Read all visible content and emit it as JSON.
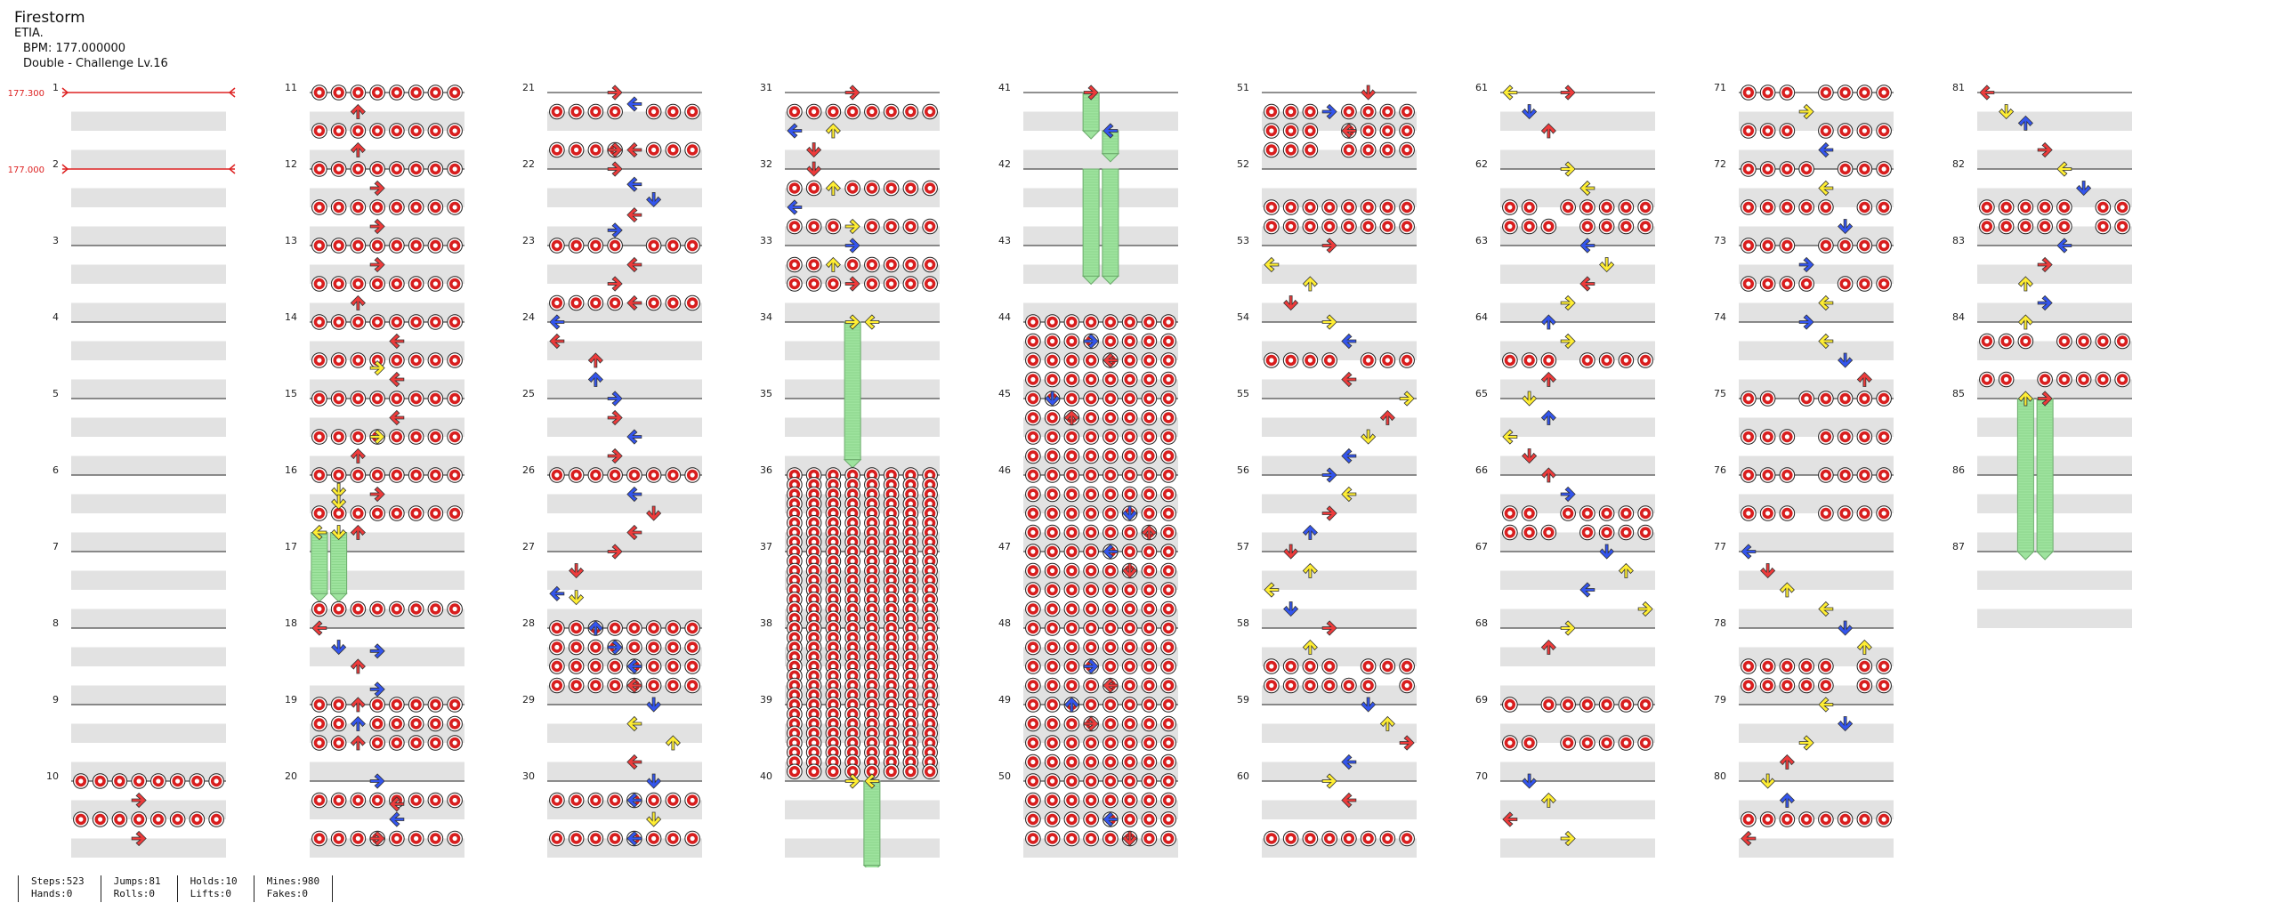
{
  "song": {
    "title": "Firestorm",
    "artist": "ETIA.",
    "bpm_label": "BPM: 177.000000",
    "difficulty": "Double - Challenge Lv.16"
  },
  "bpm_changes": [
    {
      "measure": 1,
      "label": "177.300"
    },
    {
      "measure": 2,
      "label": "177.000"
    }
  ],
  "measures": [
    1,
    2,
    3,
    4,
    5,
    6,
    7,
    8,
    9,
    10,
    11,
    12,
    13,
    14,
    15,
    16,
    17,
    18,
    19,
    20,
    21,
    22,
    23,
    24,
    25,
    26,
    27,
    28,
    29,
    30,
    31,
    32,
    33,
    34,
    35,
    36,
    37,
    38,
    39,
    40,
    41,
    42,
    43,
    44,
    45,
    46,
    47,
    48,
    49,
    50,
    51,
    52,
    53,
    54,
    55,
    56,
    57,
    58,
    59,
    60,
    61,
    62,
    63,
    64,
    65,
    66,
    67,
    68,
    69,
    70,
    71,
    72,
    73,
    74,
    75,
    76,
    77,
    78,
    79,
    80,
    81,
    82,
    83,
    84,
    85,
    86,
    87
  ],
  "colors": {
    "quarter": "#ee3b3b",
    "eighth": "#3355ee",
    "sixteenth": "#ffee33",
    "hold": "#9ee39e",
    "mine": "#d81e1e",
    "band": "#e2e2e2"
  },
  "stats": {
    "steps": "Steps:523",
    "hands": "Hands:0",
    "jumps": "Jumps:81",
    "rolls": "Rolls:0",
    "holds": "Holds:10",
    "lifts": "Lifts:0",
    "mines": "Mines:980",
    "fakes": "Fakes:0"
  }
}
